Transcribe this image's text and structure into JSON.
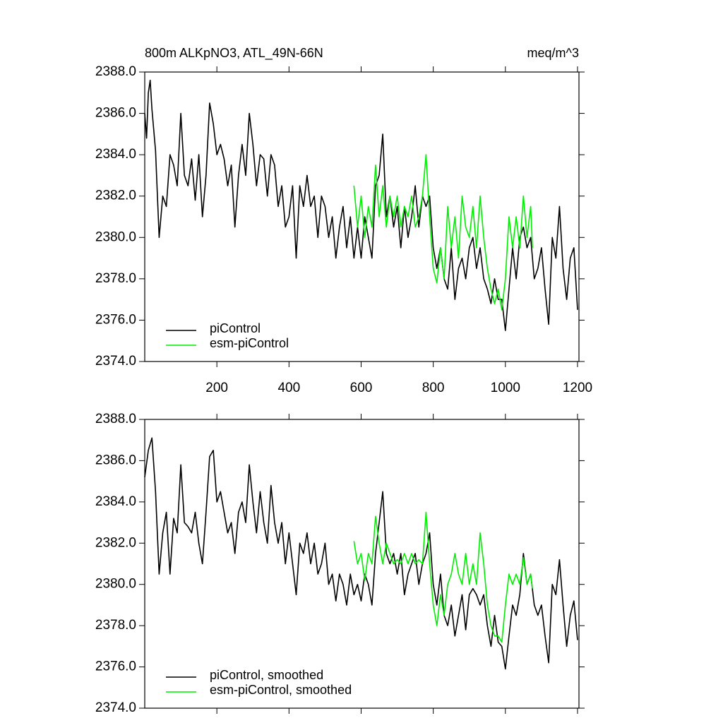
{
  "chart_data": [
    {
      "type": "line",
      "title": "800m ALKpNO3, ATL_49N-66N",
      "right_title": "meq/m^3",
      "xlim": [
        0,
        1204
      ],
      "xticks": [
        200,
        400,
        600,
        800,
        1000,
        1200
      ],
      "xtick_labels": true,
      "ylim": [
        2374,
        2388
      ],
      "yticks": [
        {
          "value": 2374,
          "label": "2374.0"
        },
        {
          "value": 2376,
          "label": "2376.0"
        },
        {
          "value": 2378,
          "label": "2378.0"
        },
        {
          "value": 2380,
          "label": "2380.0"
        },
        {
          "value": 2382,
          "label": "2382.0"
        },
        {
          "value": 2384,
          "label": "2384.0"
        },
        {
          "value": 2386,
          "label": "2386.0"
        },
        {
          "value": 2388,
          "label": "2388.0"
        }
      ],
      "legend": "lower left",
      "series": [
        {
          "name": "piControl",
          "color": "#000000",
          "x": [
            0,
            5,
            10,
            15,
            20,
            30,
            40,
            50,
            60,
            70,
            80,
            90,
            100,
            110,
            120,
            130,
            140,
            150,
            160,
            170,
            180,
            190,
            200,
            210,
            220,
            230,
            240,
            250,
            260,
            270,
            280,
            290,
            300,
            310,
            320,
            330,
            340,
            350,
            360,
            370,
            380,
            390,
            400,
            410,
            420,
            430,
            440,
            450,
            460,
            470,
            480,
            490,
            500,
            510,
            520,
            530,
            540,
            550,
            560,
            570,
            580,
            590,
            600,
            610,
            620,
            630,
            640,
            650,
            660,
            670,
            680,
            690,
            700,
            710,
            720,
            730,
            740,
            750,
            760,
            770,
            780,
            790,
            800,
            810,
            820,
            830,
            840,
            850,
            860,
            870,
            880,
            890,
            900,
            910,
            920,
            930,
            940,
            950,
            960,
            970,
            980,
            990,
            1000,
            1010,
            1020,
            1030,
            1040,
            1050,
            1060,
            1070,
            1080,
            1090,
            1100,
            1110,
            1120,
            1130,
            1140,
            1150,
            1160,
            1170,
            1180,
            1190,
            1200
          ],
          "values": [
            2386.0,
            2384.8,
            2387.0,
            2387.6,
            2386.2,
            2384.2,
            2380.0,
            2382.0,
            2381.5,
            2384.0,
            2383.5,
            2382.5,
            2386.0,
            2383.0,
            2382.5,
            2383.8,
            2381.8,
            2384.0,
            2381.0,
            2383.0,
            2386.5,
            2385.5,
            2384.0,
            2384.5,
            2383.8,
            2382.5,
            2383.5,
            2380.5,
            2383.0,
            2384.5,
            2383.0,
            2386.0,
            2384.5,
            2382.5,
            2384.0,
            2383.8,
            2382.0,
            2384.0,
            2383.5,
            2381.5,
            2382.5,
            2380.5,
            2381.0,
            2382.5,
            2379.0,
            2382.5,
            2381.5,
            2383.0,
            2381.5,
            2382.0,
            2380.0,
            2382.0,
            2381.5,
            2380.0,
            2381.0,
            2379.0,
            2380.5,
            2381.5,
            2379.5,
            2381.0,
            2379.0,
            2380.5,
            2379.0,
            2381.0,
            2380.0,
            2379.0,
            2382.5,
            2383.0,
            2385.0,
            2381.0,
            2382.0,
            2380.5,
            2381.5,
            2379.5,
            2381.5,
            2380.0,
            2381.0,
            2382.5,
            2380.5,
            2382.0,
            2381.5,
            2382.0,
            2379.5,
            2378.5,
            2379.5,
            2378.0,
            2377.5,
            2379.5,
            2377.0,
            2378.5,
            2379.0,
            2378.0,
            2379.5,
            2380.0,
            2378.5,
            2379.5,
            2378.0,
            2377.5,
            2376.8,
            2378.0,
            2377.0,
            2377.0,
            2375.5,
            2377.5,
            2379.5,
            2378.0,
            2380.0,
            2380.5,
            2379.5,
            2380.0,
            2378.0,
            2378.5,
            2379.5,
            2377.5,
            2375.8,
            2380.0,
            2379.0,
            2381.5,
            2378.5,
            2377.0,
            2379.0,
            2379.5,
            2376.5
          ]
        },
        {
          "name": "esm-piControl",
          "color": "#00ee00",
          "x": [
            580,
            590,
            600,
            610,
            620,
            630,
            640,
            650,
            660,
            670,
            680,
            690,
            700,
            710,
            720,
            730,
            740,
            750,
            760,
            770,
            780,
            790,
            800,
            810,
            820,
            830,
            840,
            850,
            860,
            870,
            880,
            890,
            900,
            910,
            920,
            930,
            940,
            950,
            960,
            970,
            980,
            990,
            1000,
            1010,
            1020,
            1030,
            1040,
            1050,
            1060,
            1070,
            1075
          ],
          "values": [
            2382.5,
            2380.5,
            2382.0,
            2380.0,
            2381.5,
            2380.5,
            2383.5,
            2381.0,
            2382.5,
            2380.5,
            2382.0,
            2381.0,
            2382.0,
            2380.5,
            2381.5,
            2381.0,
            2382.0,
            2380.5,
            2381.0,
            2382.0,
            2384.0,
            2381.0,
            2378.5,
            2377.8,
            2379.5,
            2378.0,
            2381.5,
            2379.5,
            2381.0,
            2379.0,
            2382.0,
            2380.5,
            2380.0,
            2381.5,
            2379.5,
            2382.0,
            2380.0,
            2378.5,
            2377.5,
            2376.8,
            2377.5,
            2376.5,
            2378.0,
            2381.0,
            2379.5,
            2381.0,
            2379.5,
            2382.0,
            2380.0,
            2381.5,
            2379.5
          ]
        }
      ]
    },
    {
      "type": "line",
      "xlim": [
        0,
        1204
      ],
      "xticks": [
        200,
        400,
        600,
        800,
        1000,
        1200
      ],
      "xtick_labels": false,
      "ylim": [
        2374,
        2388
      ],
      "yticks": [
        {
          "value": 2374,
          "label": "2374.0"
        },
        {
          "value": 2376,
          "label": "2376.0"
        },
        {
          "value": 2378,
          "label": "2378.0"
        },
        {
          "value": 2380,
          "label": "2380.0"
        },
        {
          "value": 2382,
          "label": "2382.0"
        },
        {
          "value": 2384,
          "label": "2384.0"
        },
        {
          "value": 2386,
          "label": "2386.0"
        },
        {
          "value": 2388,
          "label": "2388.0"
        }
      ],
      "legend": "lower left",
      "series": [
        {
          "name": "piControl, smoothed",
          "color": "#000000",
          "x": [
            0,
            10,
            20,
            30,
            40,
            50,
            60,
            70,
            80,
            90,
            100,
            110,
            120,
            130,
            140,
            150,
            160,
            170,
            180,
            190,
            200,
            210,
            220,
            230,
            240,
            250,
            260,
            270,
            280,
            290,
            300,
            310,
            320,
            330,
            340,
            350,
            360,
            370,
            380,
            390,
            400,
            410,
            420,
            430,
            440,
            450,
            460,
            470,
            480,
            490,
            500,
            510,
            520,
            530,
            540,
            550,
            560,
            570,
            580,
            590,
            600,
            610,
            620,
            630,
            640,
            650,
            660,
            670,
            680,
            690,
            700,
            710,
            720,
            730,
            740,
            750,
            760,
            770,
            780,
            790,
            800,
            810,
            820,
            830,
            840,
            850,
            860,
            870,
            880,
            890,
            900,
            910,
            920,
            930,
            940,
            950,
            960,
            970,
            980,
            990,
            1000,
            1010,
            1020,
            1030,
            1040,
            1050,
            1060,
            1070,
            1080,
            1090,
            1100,
            1110,
            1120,
            1130,
            1140,
            1150,
            1160,
            1170,
            1180,
            1190,
            1200
          ],
          "values": [
            2385.2,
            2386.5,
            2387.1,
            2384.5,
            2380.5,
            2382.5,
            2383.5,
            2380.5,
            2383.2,
            2382.5,
            2385.8,
            2383.0,
            2382.8,
            2382.5,
            2383.5,
            2382.0,
            2381.0,
            2383.5,
            2386.2,
            2386.5,
            2384.0,
            2384.5,
            2383.5,
            2382.5,
            2383.0,
            2381.5,
            2383.5,
            2384.0,
            2383.0,
            2385.8,
            2384.0,
            2382.5,
            2384.5,
            2383.0,
            2382.0,
            2384.8,
            2383.0,
            2382.0,
            2383.0,
            2381.0,
            2382.5,
            2381.0,
            2379.5,
            2382.0,
            2381.5,
            2382.5,
            2381.0,
            2382.0,
            2380.5,
            2381.0,
            2382.0,
            2380.0,
            2380.5,
            2379.2,
            2380.5,
            2380.0,
            2379.0,
            2380.5,
            2379.5,
            2380.0,
            2379.2,
            2380.5,
            2380.0,
            2379.0,
            2381.5,
            2383.0,
            2384.5,
            2381.5,
            2381.0,
            2381.5,
            2380.5,
            2381.5,
            2379.5,
            2380.5,
            2381.0,
            2381.5,
            2380.0,
            2381.0,
            2381.5,
            2382.5,
            2380.0,
            2379.0,
            2380.5,
            2378.5,
            2378.0,
            2379.0,
            2377.5,
            2378.5,
            2379.5,
            2377.8,
            2379.5,
            2379.8,
            2379.5,
            2379.0,
            2379.5,
            2378.0,
            2377.0,
            2378.5,
            2377.2,
            2377.0,
            2375.9,
            2377.5,
            2379.0,
            2378.5,
            2379.5,
            2381.5,
            2380.0,
            2380.5,
            2379.0,
            2378.5,
            2379.0,
            2377.5,
            2376.2,
            2380.0,
            2379.5,
            2381.2,
            2379.0,
            2377.0,
            2378.5,
            2379.2,
            2377.3
          ]
        },
        {
          "name": "esm-piControl, smoothed",
          "color": "#00ee00",
          "x": [
            580,
            590,
            600,
            610,
            620,
            630,
            640,
            650,
            660,
            670,
            680,
            690,
            700,
            710,
            720,
            730,
            740,
            750,
            760,
            770,
            780,
            790,
            800,
            810,
            820,
            830,
            840,
            850,
            860,
            870,
            880,
            890,
            900,
            910,
            920,
            930,
            940,
            950,
            960,
            970,
            980,
            990,
            1000,
            1010,
            1020,
            1030,
            1040,
            1050,
            1060,
            1070,
            1075
          ],
          "values": [
            2382.1,
            2381.0,
            2381.5,
            2380.2,
            2381.5,
            2381.0,
            2383.3,
            2382.0,
            2381.0,
            2382.0,
            2381.5,
            2381.0,
            2381.2,
            2381.0,
            2381.5,
            2381.0,
            2381.5,
            2381.0,
            2381.2,
            2381.0,
            2383.5,
            2381.0,
            2379.0,
            2378.0,
            2379.5,
            2378.5,
            2380.0,
            2380.5,
            2381.5,
            2380.5,
            2380.0,
            2381.5,
            2380.0,
            2381.0,
            2380.0,
            2382.5,
            2381.0,
            2379.0,
            2378.0,
            2377.5,
            2377.5,
            2377.2,
            2379.0,
            2380.5,
            2380.0,
            2380.5,
            2380.0,
            2381.3,
            2380.0,
            2380.5,
            2379.8
          ]
        }
      ]
    }
  ]
}
